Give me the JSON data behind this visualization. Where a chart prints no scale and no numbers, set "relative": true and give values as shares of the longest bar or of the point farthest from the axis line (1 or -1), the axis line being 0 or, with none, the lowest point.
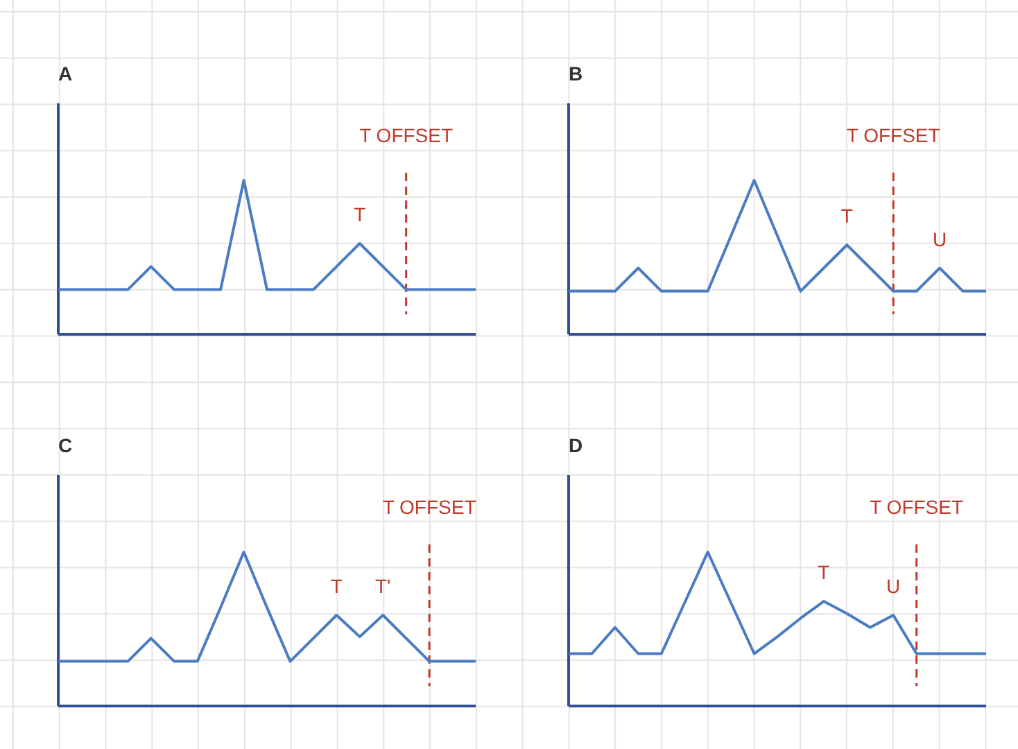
{
  "chart_data": [
    {
      "type": "line",
      "title": "A",
      "relative": true,
      "categories": [
        null,
        null,
        null,
        null,
        null,
        null,
        null,
        null,
        null,
        null,
        null,
        null,
        null,
        null,
        null,
        null,
        null,
        null,
        null
      ],
      "series": [
        {
          "color": "#4a7cc4",
          "values": [
            0.29,
            0.29,
            0.29,
            0.29,
            0.44,
            0.29,
            0.29,
            0.29,
            1,
            0.29,
            0.29,
            0.29,
            0.44,
            0.59,
            0.44,
            0.29,
            0.29,
            0.29,
            0.29
          ]
        }
      ],
      "annotations": [
        {
          "text": "T",
          "y": 0.59
        },
        "T OFFSET"
      ]
    },
    {
      "type": "line",
      "title": "B",
      "relative": true,
      "categories": [
        null,
        null,
        null,
        null,
        null,
        null,
        null,
        null,
        null,
        null,
        null,
        null,
        null,
        null,
        null,
        null,
        null,
        null,
        null
      ],
      "series": [
        {
          "color": "#4a7cc4",
          "values": [
            0.28,
            0.28,
            0.28,
            0.43,
            0.28,
            0.28,
            0.28,
            0.64,
            1,
            0.64,
            0.28,
            0.43,
            0.58,
            0.43,
            0.28,
            0.28,
            0.43,
            0.28,
            0.28
          ]
        }
      ],
      "annotations": [
        {
          "text": "T",
          "y": 0.58
        },
        "T OFFSET",
        {
          "text": "U",
          "y": 0.43
        }
      ]
    },
    {
      "type": "line",
      "title": "C",
      "relative": true,
      "categories": [
        null,
        null,
        null,
        null,
        null,
        null,
        null,
        null,
        null,
        null,
        null,
        null,
        null,
        null,
        null,
        null,
        null,
        null,
        null
      ],
      "series": [
        {
          "color": "#4a7cc4",
          "values": [
            0.29,
            0.29,
            0.29,
            0.29,
            0.44,
            0.29,
            0.29,
            0.64,
            1,
            0.64,
            0.29,
            0.44,
            0.59,
            0.45,
            0.59,
            0.44,
            0.29,
            0.29,
            0.29
          ]
        }
      ],
      "annotations": [
        {
          "text": "T",
          "y": 0.59
        },
        {
          "text": "T'",
          "y": 0.59
        },
        "T OFFSET"
      ]
    },
    {
      "type": "line",
      "title": "D",
      "relative": true,
      "categories": [
        null,
        null,
        null,
        null,
        null,
        null,
        null,
        null,
        null,
        null,
        null,
        null,
        null,
        null,
        null,
        null,
        null,
        null,
        null
      ],
      "series": [
        {
          "color": "#4a7cc4",
          "values": [
            0.34,
            0.34,
            0.51,
            0.34,
            0.34,
            0.67,
            1,
            0.67,
            0.34,
            0.45,
            0.57,
            0.68,
            0.6,
            0.51,
            0.59,
            0.34,
            0.34,
            0.34,
            0.34
          ]
        }
      ],
      "annotations": [
        {
          "text": "T",
          "y": 0.68
        },
        {
          "text": "U",
          "y": 0.59
        },
        "T OFFSET"
      ]
    }
  ]
}
